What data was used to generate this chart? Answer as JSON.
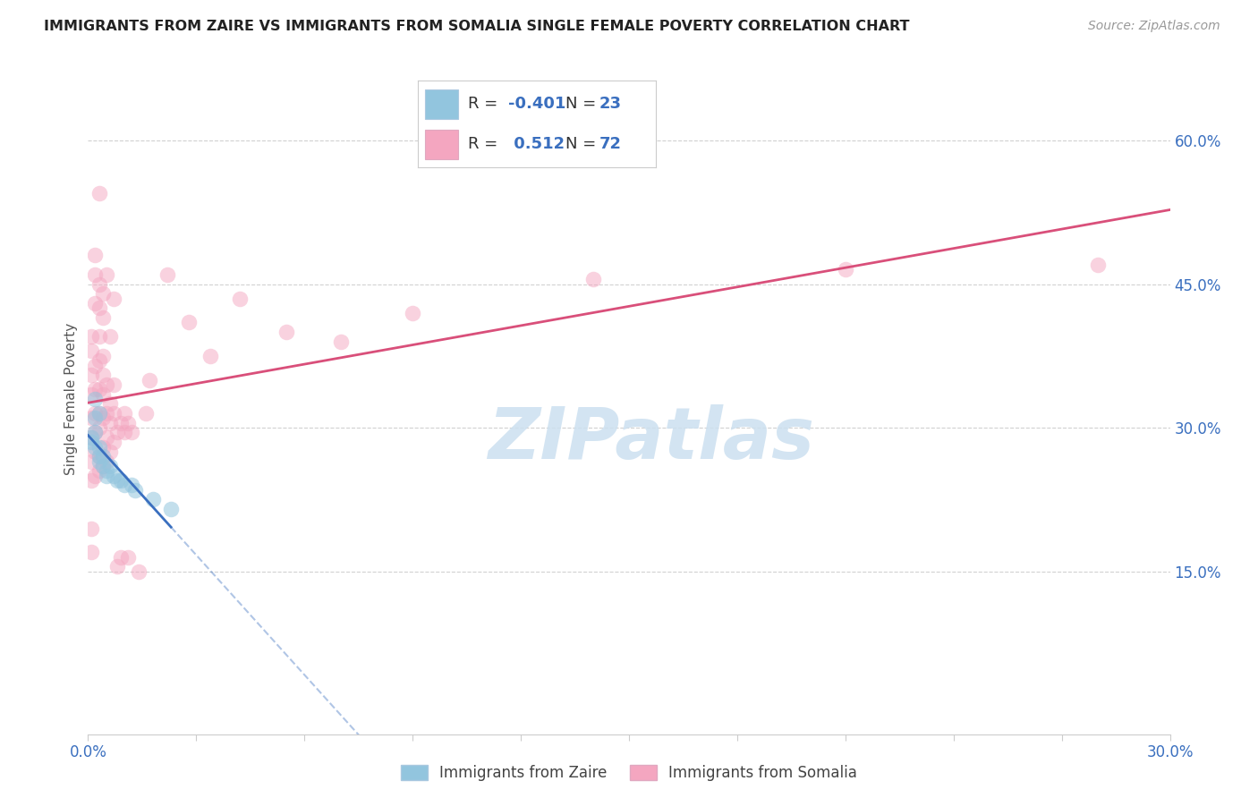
{
  "title": "IMMIGRANTS FROM ZAIRE VS IMMIGRANTS FROM SOMALIA SINGLE FEMALE POVERTY CORRELATION CHART",
  "source": "Source: ZipAtlas.com",
  "ylabel": "Single Female Poverty",
  "xlim": [
    0.0,
    0.3
  ],
  "ylim": [
    -0.02,
    0.68
  ],
  "ytick_vals": [
    0.15,
    0.3,
    0.45,
    0.6
  ],
  "ytick_labels": [
    "15.0%",
    "30.0%",
    "45.0%",
    "60.0%"
  ],
  "xtick_left_label": "0.0%",
  "xtick_right_label": "30.0%",
  "legend_r_zaire": "-0.401",
  "legend_n_zaire": "23",
  "legend_r_somalia": "0.512",
  "legend_n_somalia": "72",
  "zaire_color": "#92c5de",
  "somalia_color": "#f4a6c0",
  "zaire_line_color": "#3a6fbf",
  "somalia_line_color": "#d94f7a",
  "zaire_line_solid_end": 0.025,
  "zaire_line_dashed_end": 0.3,
  "watermark_text": "ZIPatlas",
  "legend_label_zaire": "Immigrants from Zaire",
  "legend_label_somalia": "Immigrants from Somalia",
  "zaire_points": [
    [
      0.001,
      0.29
    ],
    [
      0.001,
      0.285
    ],
    [
      0.002,
      0.295
    ],
    [
      0.002,
      0.31
    ],
    [
      0.002,
      0.28
    ],
    [
      0.002,
      0.33
    ],
    [
      0.003,
      0.27
    ],
    [
      0.003,
      0.28
    ],
    [
      0.003,
      0.265
    ],
    [
      0.003,
      0.315
    ],
    [
      0.004,
      0.27
    ],
    [
      0.004,
      0.26
    ],
    [
      0.005,
      0.255
    ],
    [
      0.005,
      0.25
    ],
    [
      0.006,
      0.26
    ],
    [
      0.007,
      0.25
    ],
    [
      0.008,
      0.245
    ],
    [
      0.009,
      0.245
    ],
    [
      0.01,
      0.24
    ],
    [
      0.012,
      0.24
    ],
    [
      0.013,
      0.235
    ],
    [
      0.018,
      0.225
    ],
    [
      0.023,
      0.215
    ]
  ],
  "somalia_points": [
    [
      0.001,
      0.245
    ],
    [
      0.001,
      0.265
    ],
    [
      0.001,
      0.29
    ],
    [
      0.001,
      0.31
    ],
    [
      0.001,
      0.335
    ],
    [
      0.001,
      0.355
    ],
    [
      0.001,
      0.38
    ],
    [
      0.001,
      0.395
    ],
    [
      0.001,
      0.17
    ],
    [
      0.001,
      0.195
    ],
    [
      0.002,
      0.25
    ],
    [
      0.002,
      0.275
    ],
    [
      0.002,
      0.295
    ],
    [
      0.002,
      0.315
    ],
    [
      0.002,
      0.34
    ],
    [
      0.002,
      0.365
    ],
    [
      0.002,
      0.43
    ],
    [
      0.002,
      0.46
    ],
    [
      0.002,
      0.48
    ],
    [
      0.003,
      0.255
    ],
    [
      0.003,
      0.27
    ],
    [
      0.003,
      0.3
    ],
    [
      0.003,
      0.315
    ],
    [
      0.003,
      0.34
    ],
    [
      0.003,
      0.37
    ],
    [
      0.003,
      0.395
    ],
    [
      0.003,
      0.425
    ],
    [
      0.003,
      0.45
    ],
    [
      0.003,
      0.545
    ],
    [
      0.004,
      0.26
    ],
    [
      0.004,
      0.28
    ],
    [
      0.004,
      0.31
    ],
    [
      0.004,
      0.335
    ],
    [
      0.004,
      0.355
    ],
    [
      0.004,
      0.375
    ],
    [
      0.004,
      0.415
    ],
    [
      0.004,
      0.44
    ],
    [
      0.005,
      0.265
    ],
    [
      0.005,
      0.29
    ],
    [
      0.005,
      0.315
    ],
    [
      0.005,
      0.345
    ],
    [
      0.005,
      0.46
    ],
    [
      0.006,
      0.275
    ],
    [
      0.006,
      0.305
    ],
    [
      0.006,
      0.325
    ],
    [
      0.006,
      0.395
    ],
    [
      0.007,
      0.285
    ],
    [
      0.007,
      0.315
    ],
    [
      0.007,
      0.345
    ],
    [
      0.007,
      0.435
    ],
    [
      0.008,
      0.155
    ],
    [
      0.008,
      0.295
    ],
    [
      0.009,
      0.165
    ],
    [
      0.009,
      0.305
    ],
    [
      0.01,
      0.295
    ],
    [
      0.01,
      0.315
    ],
    [
      0.011,
      0.165
    ],
    [
      0.011,
      0.305
    ],
    [
      0.012,
      0.295
    ],
    [
      0.014,
      0.15
    ],
    [
      0.016,
      0.315
    ],
    [
      0.017,
      0.35
    ],
    [
      0.022,
      0.46
    ],
    [
      0.028,
      0.41
    ],
    [
      0.034,
      0.375
    ],
    [
      0.042,
      0.435
    ],
    [
      0.055,
      0.4
    ],
    [
      0.07,
      0.39
    ],
    [
      0.09,
      0.42
    ],
    [
      0.14,
      0.455
    ],
    [
      0.21,
      0.465
    ],
    [
      0.28,
      0.47
    ]
  ]
}
